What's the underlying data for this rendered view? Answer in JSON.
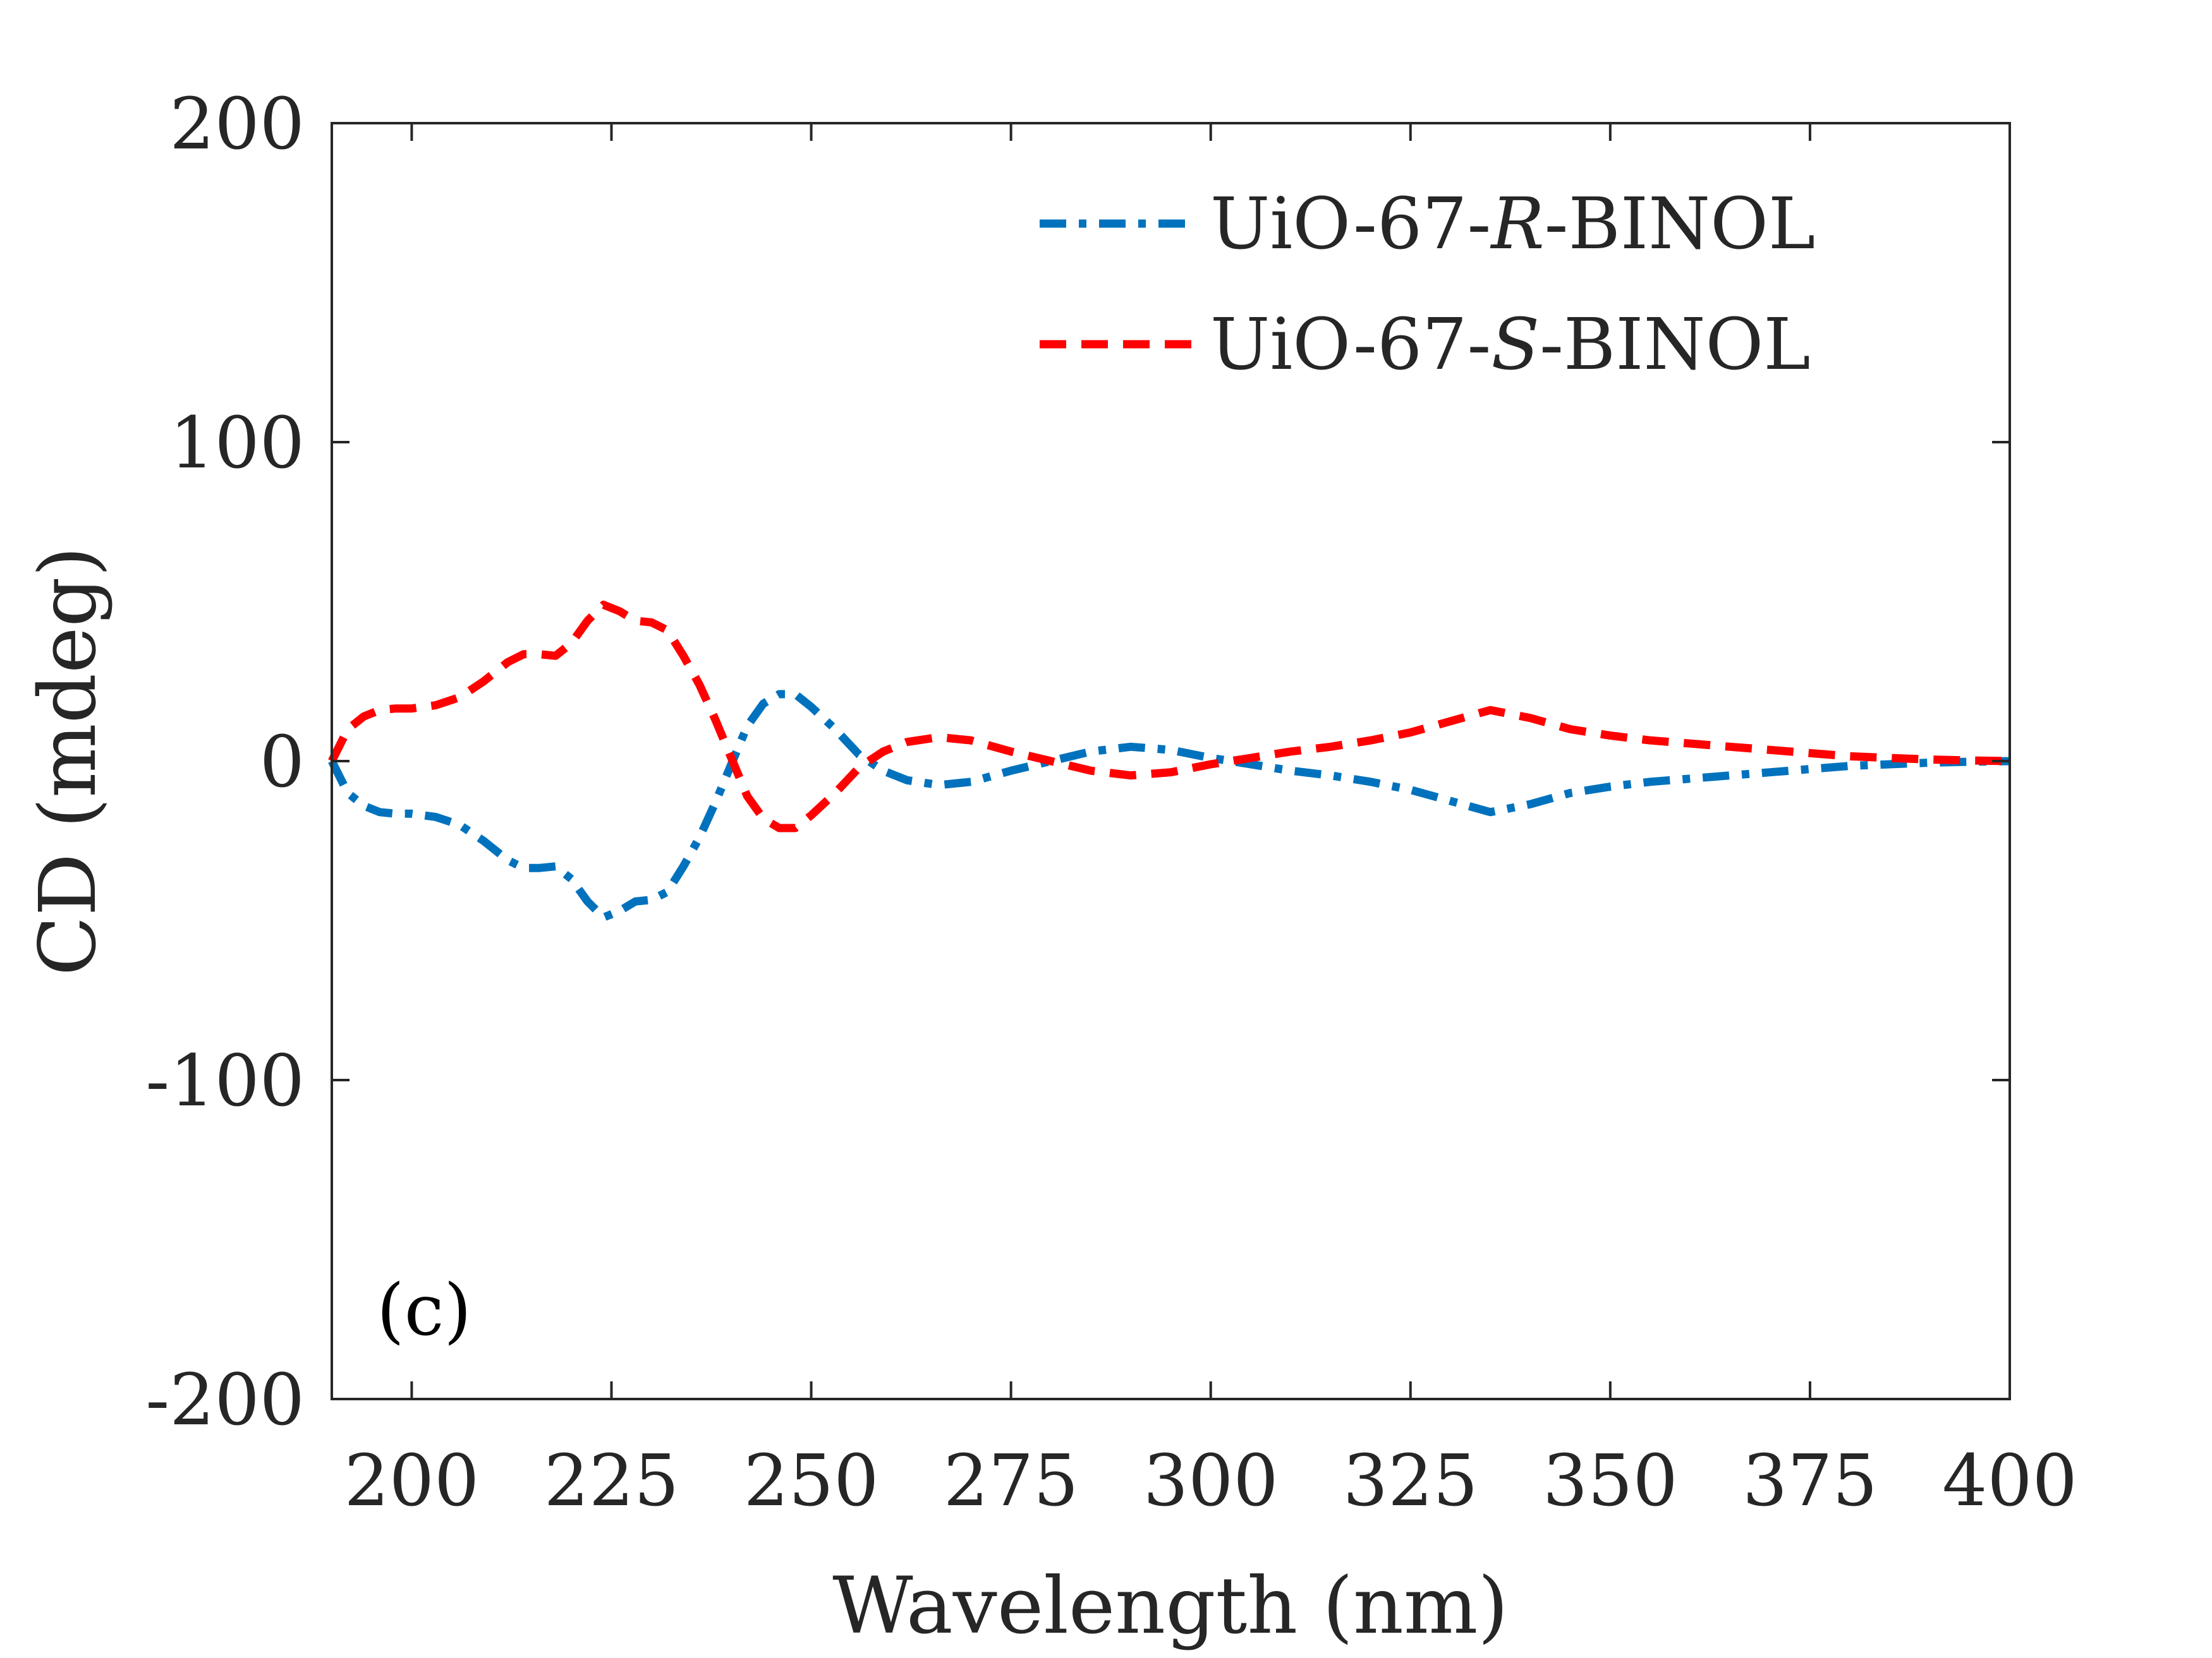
{
  "chart_data": {
    "type": "line",
    "panel_label": "(c)",
    "xlabel": "Wavelength (nm)",
    "ylabel": "CD (mdeg)",
    "xlim": [
      190,
      400
    ],
    "ylim": [
      -200,
      200
    ],
    "x_ticks": [
      200,
      225,
      250,
      275,
      300,
      325,
      350,
      375,
      400
    ],
    "y_ticks": [
      -200,
      -100,
      0,
      100,
      200
    ],
    "x_tick_labels": [
      "200",
      "225",
      "250",
      "275",
      "300",
      "325",
      "350",
      "375",
      "400"
    ],
    "y_tick_labels": [
      "-200",
      "-100",
      "0",
      "100",
      "200"
    ],
    "grid": false,
    "legend_position": "top-right",
    "series": [
      {
        "name": "UiO-67-R-BINOL",
        "legend_prefix": "UiO-67-",
        "legend_italic": "R",
        "legend_suffix": "-BINOL",
        "color": "#0072BD",
        "dash": "dash-dot",
        "points": [
          [
            190,
            0
          ],
          [
            192,
            -10
          ],
          [
            194,
            -14
          ],
          [
            196,
            -16
          ],
          [
            198,
            -16.5
          ],
          [
            200,
            -16.5
          ],
          [
            203,
            -17.5
          ],
          [
            206,
            -20
          ],
          [
            209,
            -25
          ],
          [
            212,
            -31
          ],
          [
            214,
            -33.5
          ],
          [
            216,
            -33.5
          ],
          [
            218,
            -33
          ],
          [
            220,
            -37
          ],
          [
            222,
            -44
          ],
          [
            224,
            -49
          ],
          [
            226,
            -47
          ],
          [
            228,
            -44
          ],
          [
            230,
            -43.5
          ],
          [
            232,
            -41
          ],
          [
            234,
            -33
          ],
          [
            236,
            -24
          ],
          [
            238,
            -13
          ],
          [
            240,
            -1
          ],
          [
            242,
            11
          ],
          [
            244,
            18
          ],
          [
            246,
            21
          ],
          [
            248,
            21
          ],
          [
            250,
            17
          ],
          [
            253,
            10
          ],
          [
            256,
            2
          ],
          [
            259,
            -3
          ],
          [
            262,
            -6
          ],
          [
            266,
            -7.5
          ],
          [
            270,
            -6.5
          ],
          [
            275,
            -3
          ],
          [
            280,
            0
          ],
          [
            285,
            3
          ],
          [
            290,
            4.5
          ],
          [
            295,
            3.5
          ],
          [
            300,
            1
          ],
          [
            305,
            -1
          ],
          [
            310,
            -3
          ],
          [
            315,
            -4.5
          ],
          [
            320,
            -6.5
          ],
          [
            325,
            -9
          ],
          [
            330,
            -12.5
          ],
          [
            335,
            -16
          ],
          [
            340,
            -13.5
          ],
          [
            345,
            -10
          ],
          [
            350,
            -8
          ],
          [
            355,
            -6.5
          ],
          [
            360,
            -5.5
          ],
          [
            365,
            -4.5
          ],
          [
            370,
            -3.5
          ],
          [
            375,
            -2.5
          ],
          [
            380,
            -1.5
          ],
          [
            385,
            -1
          ],
          [
            390,
            -0.5
          ],
          [
            395,
            -0.2
          ],
          [
            400,
            0
          ]
        ]
      },
      {
        "name": "UiO-67-S-BINOL",
        "legend_prefix": "UiO-67-",
        "legend_italic": "S",
        "legend_suffix": "-BINOL",
        "color": "#FF0000",
        "dash": "dashed",
        "points": [
          [
            190,
            0
          ],
          [
            192,
            10
          ],
          [
            194,
            14
          ],
          [
            196,
            16
          ],
          [
            198,
            16.5
          ],
          [
            200,
            16.5
          ],
          [
            203,
            17.5
          ],
          [
            206,
            20
          ],
          [
            209,
            25
          ],
          [
            212,
            31
          ],
          [
            214,
            33.5
          ],
          [
            216,
            33.5
          ],
          [
            218,
            33
          ],
          [
            220,
            37
          ],
          [
            222,
            44
          ],
          [
            224,
            49
          ],
          [
            226,
            47
          ],
          [
            228,
            44
          ],
          [
            230,
            43.5
          ],
          [
            232,
            41
          ],
          [
            234,
            33
          ],
          [
            236,
            24
          ],
          [
            238,
            13
          ],
          [
            240,
            1
          ],
          [
            242,
            -11
          ],
          [
            244,
            -18
          ],
          [
            246,
            -21
          ],
          [
            248,
            -21
          ],
          [
            250,
            -17
          ],
          [
            253,
            -10
          ],
          [
            256,
            -2
          ],
          [
            259,
            3
          ],
          [
            262,
            6
          ],
          [
            266,
            7.5
          ],
          [
            270,
            6.5
          ],
          [
            275,
            3
          ],
          [
            280,
            0
          ],
          [
            285,
            -3
          ],
          [
            290,
            -4.5
          ],
          [
            295,
            -3.5
          ],
          [
            300,
            -1
          ],
          [
            305,
            1
          ],
          [
            310,
            3
          ],
          [
            315,
            4.5
          ],
          [
            320,
            6.5
          ],
          [
            325,
            9
          ],
          [
            330,
            12.5
          ],
          [
            335,
            16
          ],
          [
            340,
            13.5
          ],
          [
            345,
            10
          ],
          [
            350,
            8
          ],
          [
            355,
            6.5
          ],
          [
            360,
            5.5
          ],
          [
            365,
            4.5
          ],
          [
            370,
            3.5
          ],
          [
            375,
            2.5
          ],
          [
            380,
            1.5
          ],
          [
            385,
            1
          ],
          [
            390,
            0.5
          ],
          [
            395,
            0.2
          ],
          [
            400,
            0
          ]
        ]
      }
    ]
  }
}
